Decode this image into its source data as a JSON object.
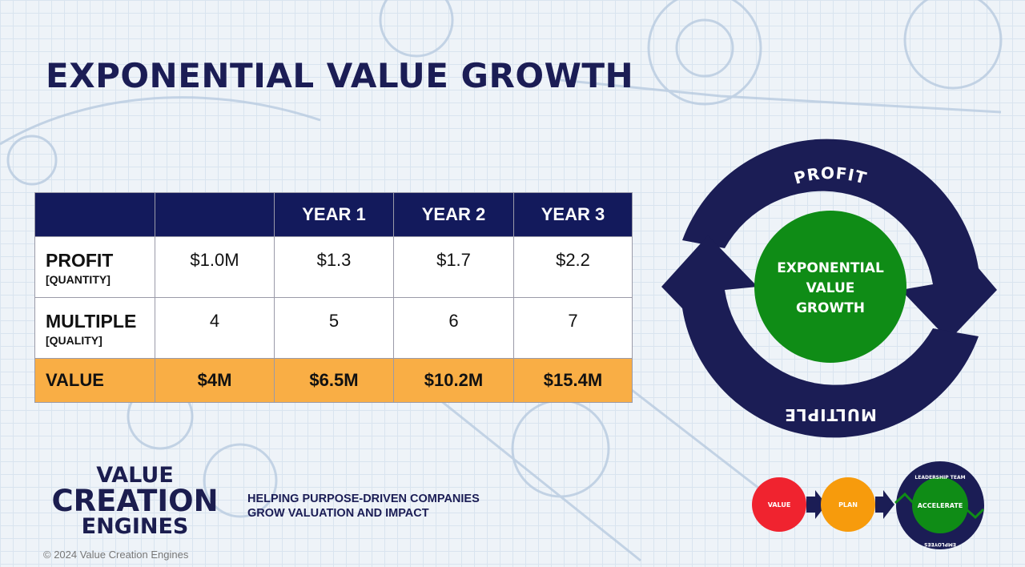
{
  "title": "EXPONENTIAL VALUE GROWTH",
  "table": {
    "headers": [
      "",
      "",
      "YEAR 1",
      "YEAR 2",
      "YEAR 3"
    ],
    "rows": [
      {
        "label": "PROFIT",
        "sublabel": "[QUANTITY]",
        "values": [
          "$1.0M",
          "$1.3",
          "$1.7",
          "$2.2"
        ]
      },
      {
        "label": "MULTIPLE",
        "sublabel": "[QUALITY]",
        "values": [
          "4",
          "5",
          "6",
          "7"
        ]
      },
      {
        "label": "VALUE",
        "values": [
          "$4M",
          "$6.5M",
          "$10.2M",
          "$15.4M"
        ]
      }
    ]
  },
  "cycle": {
    "top": "PROFIT",
    "bottom": "MULTIPLE",
    "center": [
      "EXPONENTIAL",
      "VALUE",
      "GROWTH"
    ]
  },
  "logo": {
    "line1": "VALUE",
    "line2": "CREATION",
    "line3": "ENGINES"
  },
  "tagline": [
    "HELPING PURPOSE-DRIVEN COMPANIES",
    "GROW VALUATION AND IMPACT"
  ],
  "copyright": "© 2024 Value Creation Engines",
  "process": {
    "steps": [
      "VALUE",
      "PLAN",
      "ACCELERATE"
    ],
    "ring_top": "LEADERSHIP TEAM",
    "ring_bottom": "EMPLOYEES"
  },
  "colors": {
    "navy": "#1b1d55",
    "green": "#0f8c16",
    "orange": "#f9ae45",
    "red": "#f0232f",
    "amber": "#f79b0c"
  }
}
